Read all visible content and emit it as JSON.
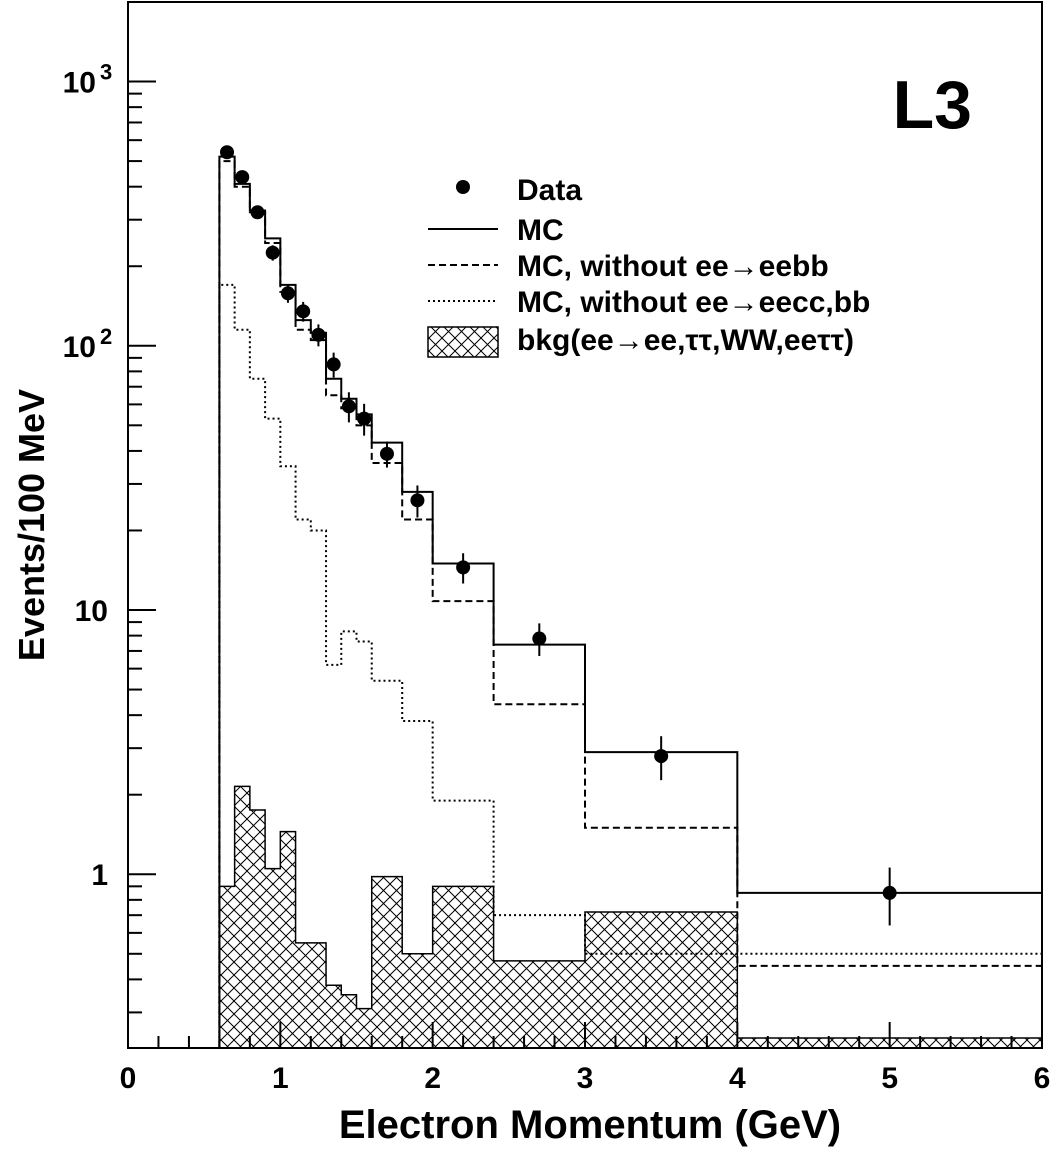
{
  "chart_data": {
    "type": "step-histogram",
    "experiment_label": "L3",
    "xlabel": "Electron Momentum (GeV)",
    "ylabel": "Events/100 MeV",
    "xlim": [
      0,
      6
    ],
    "ylim": [
      0.22,
      2000
    ],
    "yscale": "log",
    "grid": false,
    "legend_position": "top-right",
    "x_ticks": [
      {
        "value": 0,
        "label": "0"
      },
      {
        "value": 1,
        "label": "1"
      },
      {
        "value": 2,
        "label": "2"
      },
      {
        "value": 3,
        "label": "3"
      },
      {
        "value": 4,
        "label": "4"
      },
      {
        "value": 5,
        "label": "5"
      },
      {
        "value": 6,
        "label": "6"
      }
    ],
    "y_ticks": [
      {
        "value": 1,
        "label": "1"
      },
      {
        "value": 10,
        "label": "10"
      },
      {
        "value": 100,
        "label": "10",
        "exp": "2"
      },
      {
        "value": 1000,
        "label": "10",
        "exp": "3"
      }
    ],
    "legend": {
      "data": "Data",
      "mc": "MC",
      "mc_no_bb": "MC, without ee→eebb",
      "mc_no_ccbb": "MC, without ee→eecc,bb",
      "bkg": "bkg(ee→ee,ττ,WW,eeττ)"
    },
    "bin_edges": [
      0.6,
      0.7,
      0.8,
      0.9,
      1.0,
      1.1,
      1.2,
      1.3,
      1.4,
      1.5,
      1.6,
      1.8,
      2.0,
      2.4,
      3.0,
      4.0,
      6.0
    ],
    "series": [
      {
        "id": "mc",
        "style": "solid",
        "values": [
          520,
          410,
          325,
          255,
          170,
          125,
          112,
          75,
          63,
          55,
          43,
          28,
          15,
          7.4,
          2.9,
          0.85
        ]
      },
      {
        "id": "mc_no_bb",
        "style": "dashed",
        "values": [
          500,
          400,
          320,
          245,
          160,
          115,
          105,
          65,
          58,
          50,
          36,
          22,
          10.8,
          4.4,
          1.5,
          0.45
        ]
      },
      {
        "id": "mc_no_ccbb",
        "style": "dotted",
        "values": [
          170,
          115,
          75,
          53,
          35,
          22,
          20,
          6.2,
          8.3,
          7.6,
          5.4,
          3.8,
          1.9,
          0.7,
          0.5,
          0.5
        ]
      },
      {
        "id": "bkg",
        "style": "hatched",
        "values": [
          0.9,
          2.15,
          1.75,
          1.05,
          1.45,
          0.55,
          0.55,
          0.38,
          0.35,
          0.31,
          0.98,
          0.5,
          0.9,
          0.47,
          0.72,
          0.24
        ]
      }
    ],
    "data_points": [
      {
        "x": 0.65,
        "y": 540,
        "err": 23
      },
      {
        "x": 0.75,
        "y": 435,
        "err": 21
      },
      {
        "x": 0.85,
        "y": 320,
        "err": 18
      },
      {
        "x": 0.95,
        "y": 225,
        "err": 15
      },
      {
        "x": 1.05,
        "y": 158,
        "err": 12.5
      },
      {
        "x": 1.15,
        "y": 135,
        "err": 11.6
      },
      {
        "x": 1.25,
        "y": 110,
        "err": 10.5
      },
      {
        "x": 1.35,
        "y": 85,
        "err": 9.2
      },
      {
        "x": 1.45,
        "y": 59,
        "err": 7.7
      },
      {
        "x": 1.55,
        "y": 53,
        "err": 7.3
      },
      {
        "x": 1.7,
        "y": 39,
        "err": 4.4
      },
      {
        "x": 1.9,
        "y": 26,
        "err": 3.6
      },
      {
        "x": 2.2,
        "y": 14.5,
        "err": 1.9
      },
      {
        "x": 2.7,
        "y": 7.8,
        "err": 1.1
      },
      {
        "x": 3.5,
        "y": 2.8,
        "err": 0.53
      },
      {
        "x": 5.0,
        "y": 0.85,
        "err": 0.21
      }
    ]
  }
}
